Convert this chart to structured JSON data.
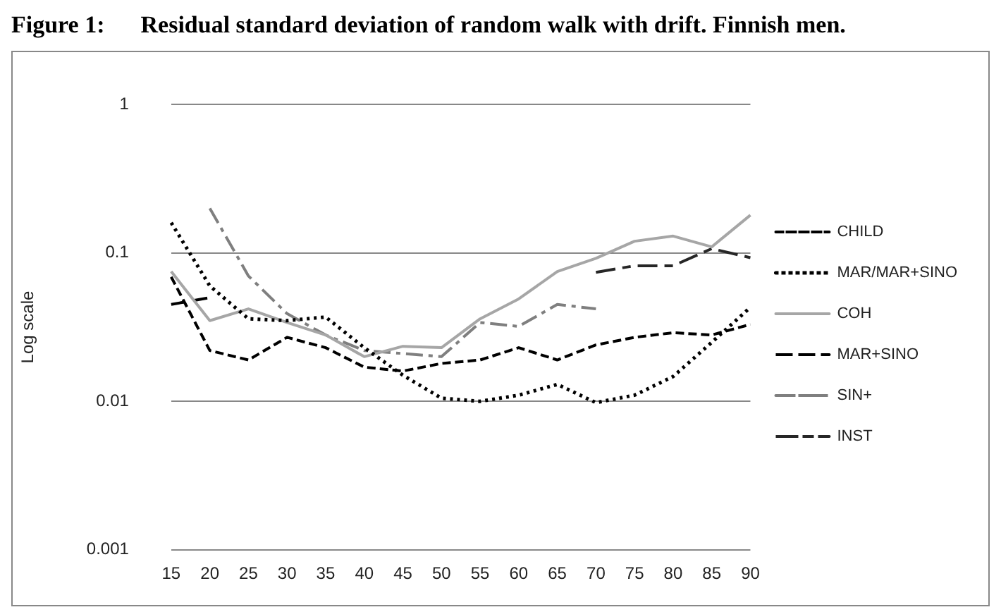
{
  "chart_data": {
    "type": "line",
    "title": "Figure 1:      Residual standard deviation of random walk with drift. Finnish men.",
    "ylabel": "Log scale",
    "categories": [
      "15",
      "20",
      "25",
      "30",
      "35",
      "40",
      "45",
      "50",
      "55",
      "60",
      "65",
      "70",
      "75",
      "80",
      "85",
      "90"
    ],
    "log": "y",
    "ylim": [
      0.001,
      1
    ],
    "yticks": [
      0.001,
      0.01,
      0.1,
      1
    ],
    "grid": "y",
    "legend": "right",
    "marker": "none",
    "series": [
      {
        "name": "CHILD",
        "color": "#000000",
        "line_style": "dashed",
        "values": [
          0.069,
          0.022,
          0.019,
          0.027,
          0.023,
          0.017,
          0.016,
          0.018,
          0.019,
          0.023,
          0.019,
          0.024,
          0.027,
          0.029,
          0.028,
          0.033
        ]
      },
      {
        "name": "MAR/MAR+SINO",
        "color": "#000000",
        "line_style": "dotted",
        "values": [
          0.16,
          0.06,
          0.036,
          0.035,
          0.037,
          0.023,
          0.015,
          0.0105,
          0.01,
          0.011,
          0.013,
          0.0098,
          0.011,
          0.0147,
          0.025,
          0.043
        ]
      },
      {
        "name": "COH",
        "color": "#a6a6a6",
        "line_style": "solid",
        "values": [
          0.075,
          0.035,
          0.042,
          0.034,
          0.028,
          0.02,
          0.0235,
          0.023,
          0.036,
          0.049,
          0.075,
          0.092,
          0.12,
          0.13,
          0.11,
          0.18
        ]
      },
      {
        "name": "MAR+SINO",
        "color": "#000000",
        "line_style": "dashed",
        "values": [
          0.045,
          0.05,
          null,
          null,
          null,
          null,
          null,
          null,
          null,
          null,
          null,
          null,
          null,
          null,
          null,
          null
        ]
      },
      {
        "name": "SIN+",
        "color": "#7f7f7f",
        "line_style": "dashed",
        "values": [
          null,
          0.2,
          0.07,
          0.039,
          0.028,
          0.022,
          0.021,
          0.02,
          0.034,
          0.032,
          0.045,
          0.042,
          null,
          null,
          null,
          null
        ]
      },
      {
        "name": "INST",
        "color": "#262626",
        "line_style": "dashed",
        "values": [
          null,
          null,
          null,
          null,
          null,
          null,
          null,
          null,
          null,
          null,
          null,
          0.074,
          0.082,
          0.082,
          0.107,
          0.093
        ]
      }
    ]
  }
}
